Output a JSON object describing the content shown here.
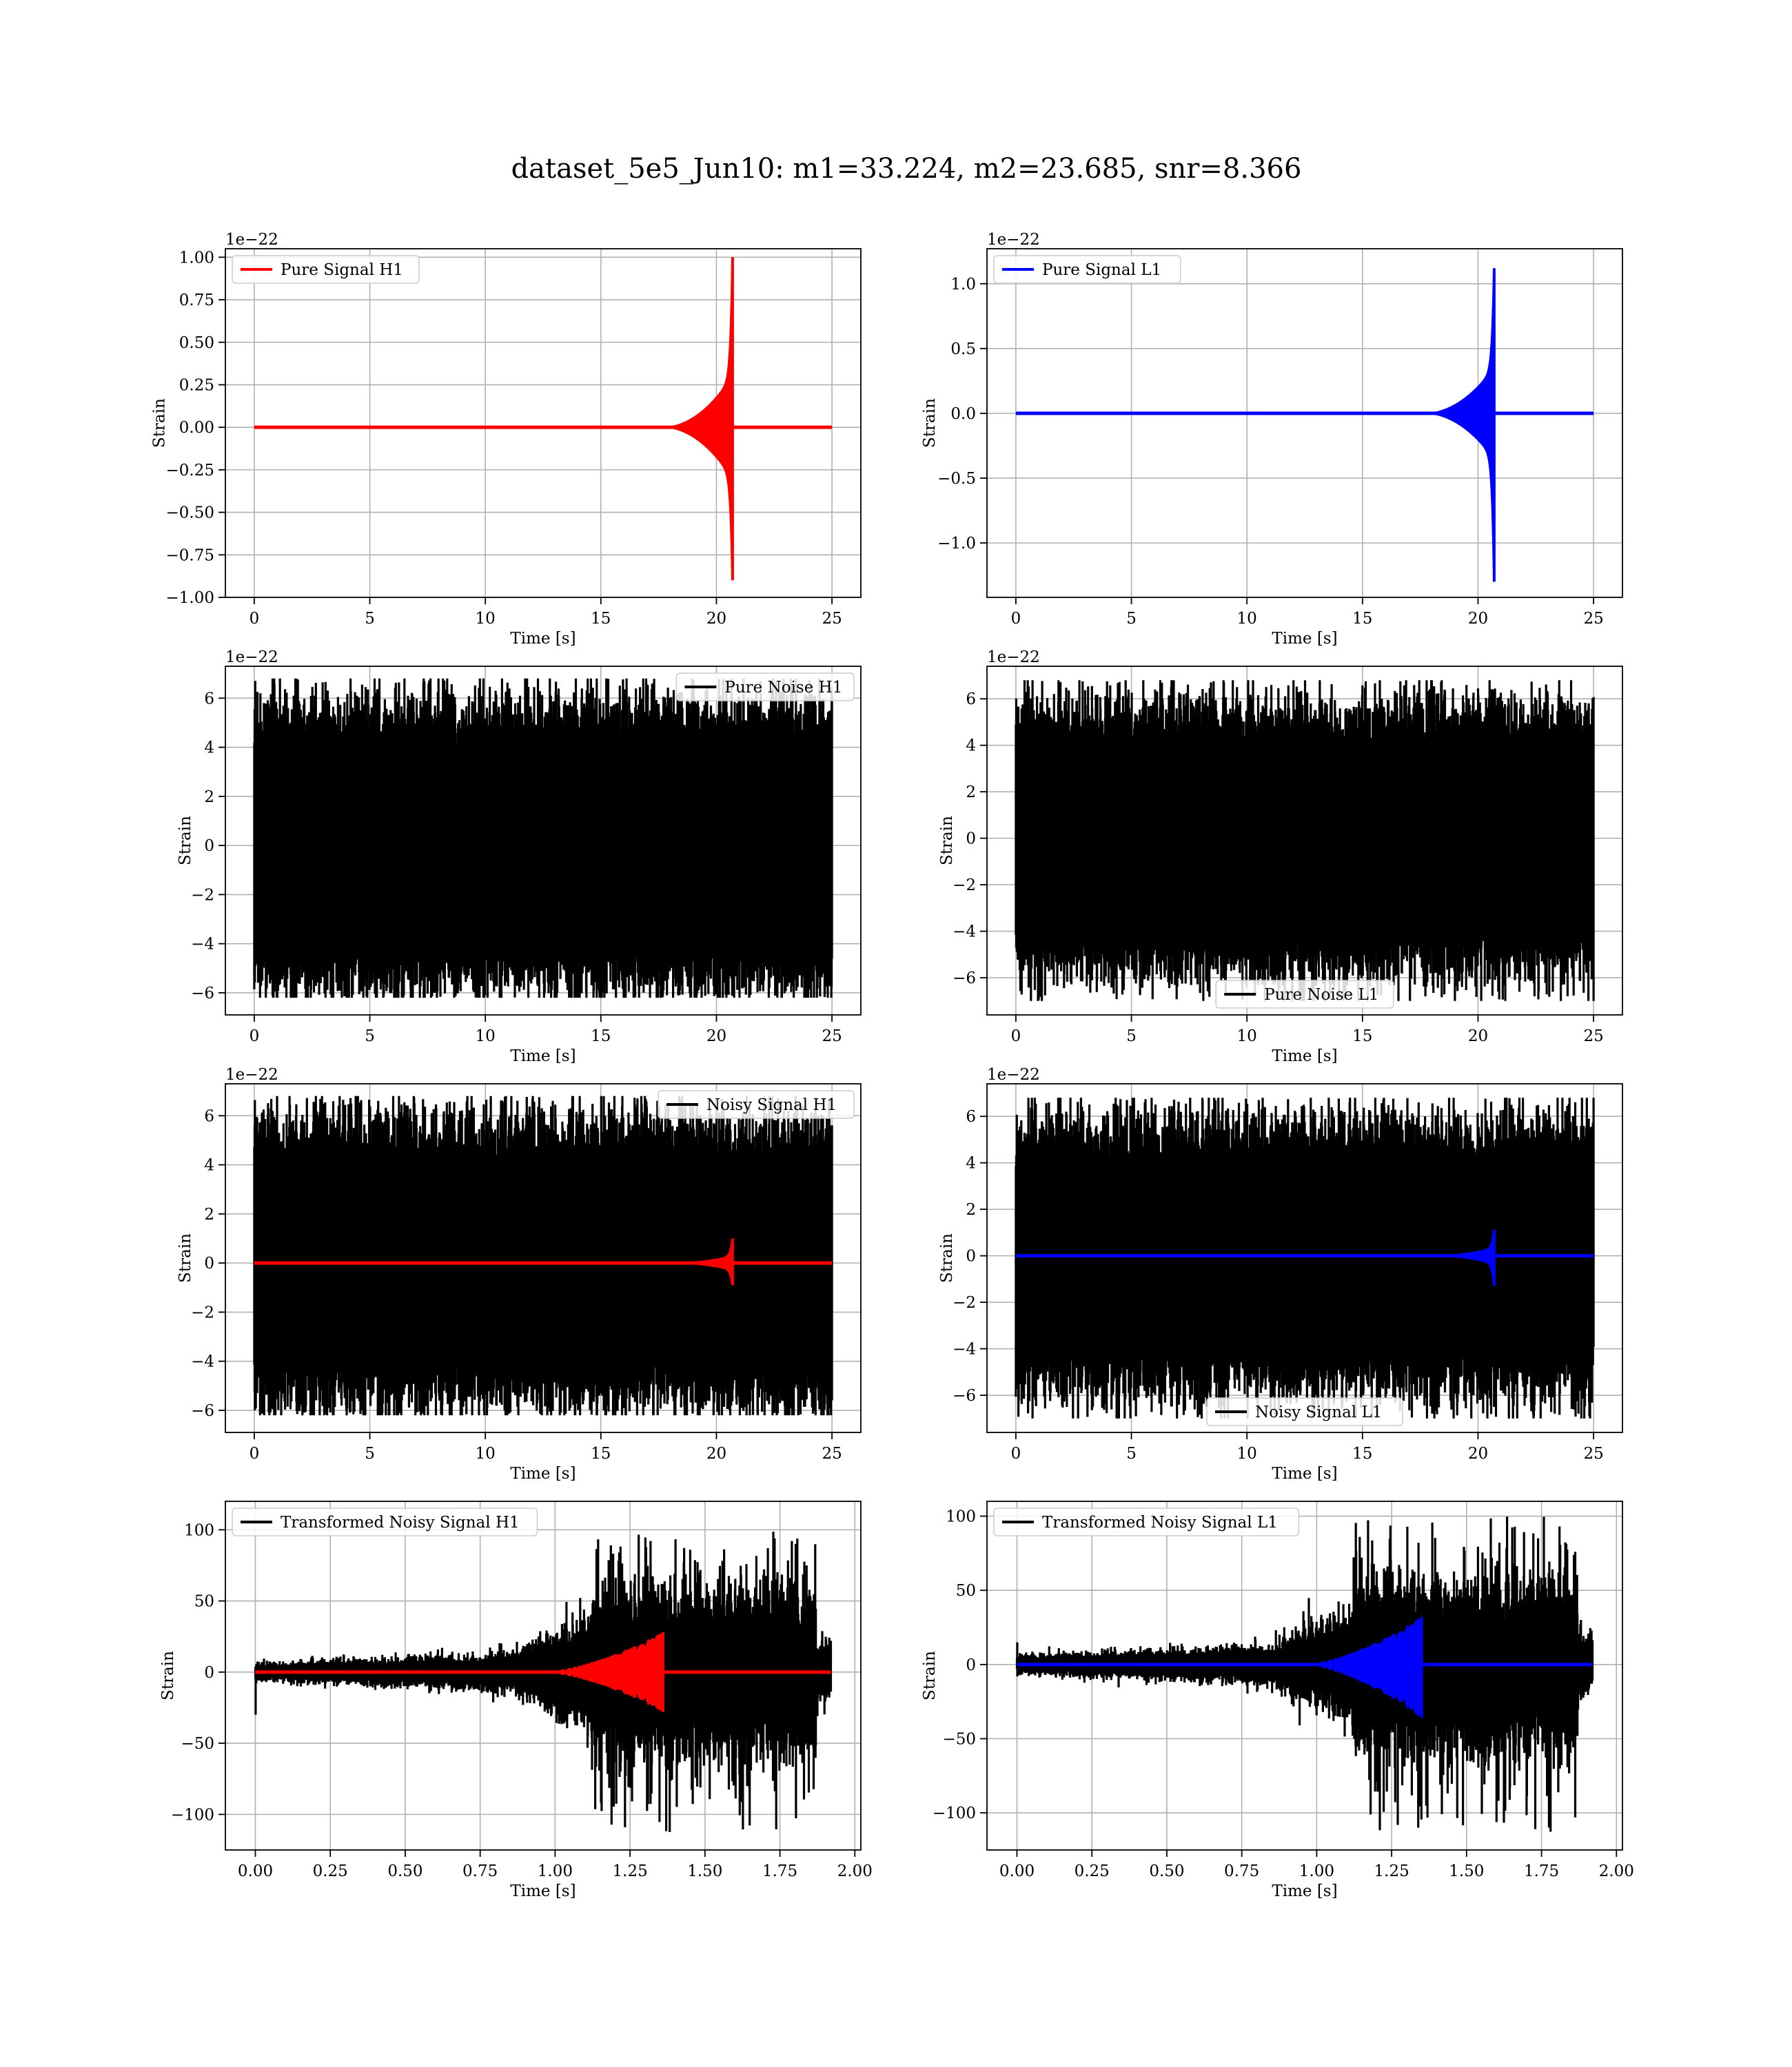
{
  "title": "dataset_5e5_Jun10: m1=33.224, m2=23.685, snr=8.366",
  "colors": {
    "h1_signal": "#ff0000",
    "l1_signal": "#0000ff",
    "noise": "#000000",
    "grid": "#b0b0b0"
  },
  "chart_data": [
    {
      "type": "line",
      "legend": [
        "Pure Signal H1"
      ],
      "legend_loc": "upper left",
      "xlabel": "Time [s]",
      "ylabel": "Strain",
      "offset_text": "1e−22",
      "xlim": [
        -1.25,
        26.25
      ],
      "ylim": [
        -1.0,
        1.05
      ],
      "xticks": [
        0,
        5,
        10,
        15,
        20,
        25
      ],
      "xticklabels": [
        "0",
        "5",
        "10",
        "15",
        "20",
        "25"
      ],
      "yticks": [
        -1.0,
        -0.75,
        -0.5,
        -0.25,
        0.0,
        0.25,
        0.5,
        0.75,
        1.0
      ],
      "yticklabels": [
        "−1.00",
        "−0.75",
        "−0.50",
        "−0.25",
        "0.00",
        "0.25",
        "0.50",
        "0.75",
        "1.00"
      ],
      "series": [
        {
          "name": "Pure Signal H1",
          "kind": "chirp",
          "color": "#ff0000",
          "x_start": 0,
          "x_end": 25,
          "merger_time": 20.7,
          "chirp_start": 17.5,
          "peak_pos": 1.0,
          "peak_neg": -0.9,
          "inspiral_amp": 0.3
        }
      ]
    },
    {
      "type": "line",
      "legend": [
        "Pure Signal L1"
      ],
      "legend_loc": "upper left",
      "xlabel": "Time [s]",
      "ylabel": "Strain",
      "offset_text": "1e−22",
      "xlim": [
        -1.25,
        26.25
      ],
      "ylim": [
        -1.42,
        1.27
      ],
      "xticks": [
        0,
        5,
        10,
        15,
        20,
        25
      ],
      "xticklabels": [
        "0",
        "5",
        "10",
        "15",
        "20",
        "25"
      ],
      "yticks": [
        -1.0,
        -0.5,
        0.0,
        0.5,
        1.0
      ],
      "yticklabels": [
        "−1.0",
        "−0.5",
        "0.0",
        "0.5",
        "1.0"
      ],
      "series": [
        {
          "name": "Pure Signal L1",
          "kind": "chirp",
          "color": "#0000ff",
          "x_start": 0,
          "x_end": 25,
          "merger_time": 20.7,
          "chirp_start": 17.5,
          "peak_pos": 1.12,
          "peak_neg": -1.3,
          "inspiral_amp": 0.35
        }
      ]
    },
    {
      "type": "line",
      "legend": [
        "Pure Noise H1"
      ],
      "legend_loc": "upper right",
      "xlabel": "Time [s]",
      "ylabel": "Strain",
      "offset_text": "1e−22",
      "xlim": [
        -1.25,
        26.25
      ],
      "ylim": [
        -6.9,
        7.3
      ],
      "xticks": [
        0,
        5,
        10,
        15,
        20,
        25
      ],
      "xticklabels": [
        "0",
        "5",
        "10",
        "15",
        "20",
        "25"
      ],
      "yticks": [
        -6,
        -4,
        -2,
        0,
        2,
        4,
        6
      ],
      "yticklabels": [
        "−6",
        "−4",
        "−2",
        "0",
        "2",
        "4",
        "6"
      ],
      "series": [
        {
          "name": "Pure Noise H1",
          "kind": "noise",
          "color": "#000000",
          "x_start": 0,
          "x_end": 25,
          "std": 1.45,
          "max": 6.8,
          "min": -6.2
        }
      ]
    },
    {
      "type": "line",
      "legend": [
        "Pure Noise L1"
      ],
      "legend_loc": "lower center",
      "xlabel": "Time [s]",
      "ylabel": "Strain",
      "offset_text": "1e−22",
      "xlim": [
        -1.25,
        26.25
      ],
      "ylim": [
        -7.6,
        7.4
      ],
      "xticks": [
        0,
        5,
        10,
        15,
        20,
        25
      ],
      "xticklabels": [
        "0",
        "5",
        "10",
        "15",
        "20",
        "25"
      ],
      "yticks": [
        -6,
        -4,
        -2,
        0,
        2,
        4,
        6
      ],
      "yticklabels": [
        "−6",
        "−4",
        "−2",
        "0",
        "2",
        "4",
        "6"
      ],
      "series": [
        {
          "name": "Pure Noise L1",
          "kind": "noise",
          "color": "#000000",
          "x_start": 0,
          "x_end": 25,
          "std": 1.45,
          "max": 6.8,
          "min": -7.0
        }
      ]
    },
    {
      "type": "line",
      "legend": [
        "Noisy Signal H1"
      ],
      "legend_loc": "upper right",
      "xlabel": "Time [s]",
      "ylabel": "Strain",
      "offset_text": "1e−22",
      "xlim": [
        -1.25,
        26.25
      ],
      "ylim": [
        -6.9,
        7.3
      ],
      "xticks": [
        0,
        5,
        10,
        15,
        20,
        25
      ],
      "xticklabels": [
        "0",
        "5",
        "10",
        "15",
        "20",
        "25"
      ],
      "yticks": [
        -6,
        -4,
        -2,
        0,
        2,
        4,
        6
      ],
      "yticklabels": [
        "−6",
        "−4",
        "−2",
        "0",
        "2",
        "4",
        "6"
      ],
      "series": [
        {
          "name": "Noisy Signal H1",
          "kind": "noise",
          "color": "#000000",
          "x_start": 0,
          "x_end": 25,
          "std": 1.45,
          "max": 6.8,
          "min": -6.2
        },
        {
          "kind": "chirp",
          "color": "#ff0000",
          "x_start": 0,
          "x_end": 25,
          "merger_time": 20.7,
          "chirp_start": 17.5,
          "peak_pos": 1.0,
          "peak_neg": -0.9,
          "inspiral_amp": 0.3
        }
      ]
    },
    {
      "type": "line",
      "legend": [
        "Noisy Signal L1"
      ],
      "legend_loc": "lower center",
      "xlabel": "Time [s]",
      "ylabel": "Strain",
      "offset_text": "1e−22",
      "xlim": [
        -1.25,
        26.25
      ],
      "ylim": [
        -7.6,
        7.4
      ],
      "xticks": [
        0,
        5,
        10,
        15,
        20,
        25
      ],
      "xticklabels": [
        "0",
        "5",
        "10",
        "15",
        "20",
        "25"
      ],
      "yticks": [
        -6,
        -4,
        -2,
        0,
        2,
        4,
        6
      ],
      "yticklabels": [
        "−6",
        "−4",
        "−2",
        "0",
        "2",
        "4",
        "6"
      ],
      "series": [
        {
          "name": "Noisy Signal L1",
          "kind": "noise",
          "color": "#000000",
          "x_start": 0,
          "x_end": 25,
          "std": 1.45,
          "max": 6.8,
          "min": -7.0
        },
        {
          "kind": "chirp",
          "color": "#0000ff",
          "x_start": 0,
          "x_end": 25,
          "merger_time": 20.7,
          "chirp_start": 17.5,
          "peak_pos": 1.12,
          "peak_neg": -1.3,
          "inspiral_amp": 0.35
        }
      ]
    },
    {
      "type": "line",
      "legend": [
        "Transformed Noisy Signal H1"
      ],
      "legend_loc": "upper left",
      "xlabel": "Time [s]",
      "ylabel": "Strain",
      "offset_text": "",
      "xlim": [
        -0.1,
        2.02
      ],
      "ylim": [
        -125,
        120
      ],
      "xticks": [
        0.0,
        0.25,
        0.5,
        0.75,
        1.0,
        1.25,
        1.5,
        1.75,
        2.0
      ],
      "xticklabels": [
        "0.00",
        "0.25",
        "0.50",
        "0.75",
        "1.00",
        "1.25",
        "1.50",
        "1.75",
        "2.00"
      ],
      "yticks": [
        -100,
        -50,
        0,
        50,
        100
      ],
      "yticklabels": [
        "−100",
        "−50",
        "0",
        "50",
        "100"
      ],
      "series": [
        {
          "name": "Transformed Noisy Signal H1",
          "kind": "whitened",
          "color": "#000000",
          "x_start": 0,
          "x_end": 1.92,
          "low_amp": 8,
          "high_start": 1.12,
          "high_end": 1.87,
          "high_amp": 45,
          "max": 100,
          "min": -113,
          "edge_spike": -30
        },
        {
          "kind": "whitened_chirp",
          "color": "#ff0000",
          "x_start": 0,
          "x_end": 1.92,
          "merger_time": 1.36,
          "chirp_start": 0.95,
          "peak_pos": 28,
          "peak_neg": -28
        }
      ]
    },
    {
      "type": "line",
      "legend": [
        "Transformed Noisy Signal L1"
      ],
      "legend_loc": "upper left",
      "xlabel": "Time [s]",
      "ylabel": "Strain",
      "offset_text": "",
      "xlim": [
        -0.1,
        2.02
      ],
      "ylim": [
        -125,
        110
      ],
      "xticks": [
        0.0,
        0.25,
        0.5,
        0.75,
        1.0,
        1.25,
        1.5,
        1.75,
        2.0
      ],
      "xticklabels": [
        "0.00",
        "0.25",
        "0.50",
        "0.75",
        "1.00",
        "1.25",
        "1.50",
        "1.75",
        "2.00"
      ],
      "yticks": [
        -100,
        -50,
        0,
        50,
        100
      ],
      "yticklabels": [
        "−100",
        "−50",
        "0",
        "50",
        "100"
      ],
      "series": [
        {
          "name": "Transformed Noisy Signal L1",
          "kind": "whitened",
          "color": "#000000",
          "x_start": 0,
          "x_end": 1.92,
          "low_amp": 8,
          "high_start": 1.12,
          "high_end": 1.87,
          "high_amp": 45,
          "max": 100,
          "min": -113,
          "edge_spike": 15
        },
        {
          "kind": "whitened_chirp",
          "color": "#0000ff",
          "x_start": 0,
          "x_end": 1.92,
          "merger_time": 1.35,
          "chirp_start": 0.95,
          "peak_pos": 32,
          "peak_neg": -36
        }
      ]
    }
  ]
}
